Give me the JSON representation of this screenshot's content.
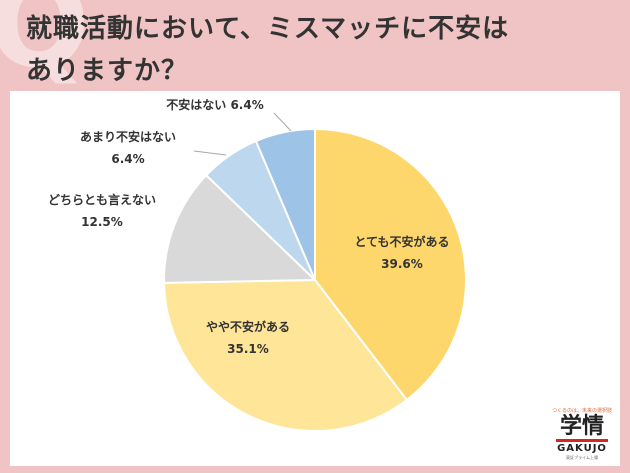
{
  "title_lines": [
    "就職活動において、ミスマッチに不安は",
    "ありますか？"
  ],
  "chart_data": {
    "type": "pie",
    "title": "就職活動において、ミスマッチに不安はありますか？",
    "start_angle_deg": 0,
    "direction": "clockwise",
    "slices": [
      {
        "label": "とても不安がある",
        "value": 39.6,
        "value_text": "39.6%",
        "color": "#fdd76b"
      },
      {
        "label": "やや不安がある",
        "value": 35.1,
        "value_text": "35.1%",
        "color": "#fee598"
      },
      {
        "label": "どちらとも言えない",
        "value": 12.5,
        "value_text": "12.5%",
        "color": "#d9d9d9"
      },
      {
        "label": "あまり不安はない",
        "value": 6.4,
        "value_text": "6.4%",
        "color": "#bdd7ee"
      },
      {
        "label": "不安はない",
        "value": 6.4,
        "value_text": "6.4%",
        "color": "#9dc3e6"
      }
    ]
  },
  "logo": {
    "tagline": "つくるのは、未来の選択肢",
    "mark": "学情",
    "name": "GAKUJO",
    "sub": "東証プライム上場"
  }
}
